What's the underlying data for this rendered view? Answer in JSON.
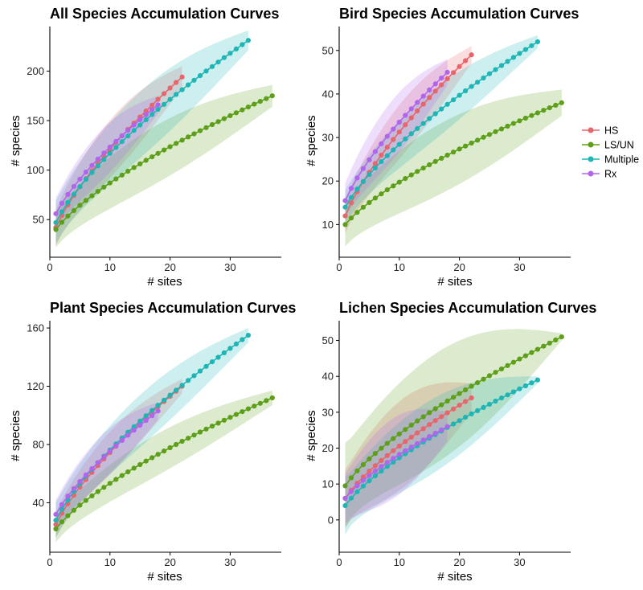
{
  "legend": {
    "entries": [
      {
        "label": "HS",
        "color": "#E7666B"
      },
      {
        "label": "LS/UN",
        "color": "#5E9F1A"
      },
      {
        "label": "Multiple",
        "color": "#1FB5B5"
      },
      {
        "label": "Rx",
        "color": "#B065EC"
      }
    ]
  },
  "chart_data": [
    {
      "type": "line",
      "title": "All Species Accumulation Curves",
      "xlabel": "# sites",
      "ylabel": "# species",
      "xlim": [
        0,
        38.5
      ],
      "ylim": [
        12,
        245
      ],
      "xticks": [
        0,
        10,
        20,
        30
      ],
      "yticks": [
        50,
        100,
        150,
        200
      ],
      "series": [
        {
          "name": "HS",
          "color": "#E7666B",
          "n": 22,
          "start": 42,
          "end": 194,
          "ci_start": 18,
          "ci_end": 11
        },
        {
          "name": "LS/UN",
          "color": "#5E9F1A",
          "n": 37,
          "start": 40,
          "end": 175,
          "ci_start": 18,
          "ci_end": 11
        },
        {
          "name": "Multiple",
          "color": "#1FB5B5",
          "n": 33,
          "start": 47,
          "end": 231,
          "ci_start": 22,
          "ci_end": 10
        },
        {
          "name": "Rx",
          "color": "#B065EC",
          "n": 18,
          "start": 56,
          "end": 166,
          "ci_start": 16,
          "ci_end": 9
        }
      ]
    },
    {
      "type": "line",
      "title": "Bird Species Accumulation Curves",
      "xlabel": "# sites",
      "ylabel": "# species",
      "xlim": [
        0,
        38.5
      ],
      "ylim": [
        2.5,
        55.5
      ],
      "xticks": [
        0,
        10,
        20,
        30
      ],
      "yticks": [
        10,
        20,
        30,
        40,
        50
      ],
      "series": [
        {
          "name": "HS",
          "color": "#E7666B",
          "n": 22,
          "start": 12,
          "end": 49,
          "ci_start": 4,
          "ci_end": 2
        },
        {
          "name": "LS/UN",
          "color": "#5E9F1A",
          "n": 37,
          "start": 10,
          "end": 38,
          "ci_start": 5,
          "ci_end": 3
        },
        {
          "name": "Multiple",
          "color": "#1FB5B5",
          "n": 33,
          "start": 14,
          "end": 52,
          "ci_start": 4,
          "ci_end": 1.5
        },
        {
          "name": "Rx",
          "color": "#B065EC",
          "n": 18,
          "start": 15.5,
          "end": 45,
          "ci_start": 4,
          "ci_end": 3
        }
      ]
    },
    {
      "type": "line",
      "title": "Plant Species Accumulation Curves",
      "xlabel": "# sites",
      "ylabel": "# species",
      "xlim": [
        0,
        38.5
      ],
      "ylim": [
        6,
        165
      ],
      "xticks": [
        0,
        10,
        20,
        30
      ],
      "yticks": [
        40,
        80,
        120,
        160
      ],
      "series": [
        {
          "name": "HS",
          "color": "#E7666B",
          "n": 22,
          "start": 25,
          "end": 120,
          "ci_start": 9,
          "ci_end": 5
        },
        {
          "name": "LS/UN",
          "color": "#5E9F1A",
          "n": 37,
          "start": 22,
          "end": 112,
          "ci_start": 9,
          "ci_end": 5
        },
        {
          "name": "Multiple",
          "color": "#1FB5B5",
          "n": 33,
          "start": 28,
          "end": 155,
          "ci_start": 12,
          "ci_end": 5
        },
        {
          "name": "Rx",
          "color": "#B065EC",
          "n": 18,
          "start": 32,
          "end": 103,
          "ci_start": 10,
          "ci_end": 6
        }
      ]
    },
    {
      "type": "line",
      "title": "Lichen Species Accumulation Curves",
      "xlabel": "# sites",
      "ylabel": "# species",
      "xlim": [
        0,
        38.5
      ],
      "ylim": [
        -9,
        55.5
      ],
      "xticks": [
        0,
        10,
        20,
        30
      ],
      "yticks": [
        0,
        10,
        20,
        30,
        40,
        50
      ],
      "series": [
        {
          "name": "HS",
          "color": "#E7666B",
          "n": 22,
          "start": 6,
          "end": 34,
          "ci_start": 8,
          "ci_end": 4
        },
        {
          "name": "LS/UN",
          "color": "#5E9F1A",
          "n": 37,
          "start": 9.5,
          "end": 51,
          "ci_start": 12,
          "ci_end": 1
        },
        {
          "name": "Multiple",
          "color": "#1FB5B5",
          "n": 33,
          "start": 4,
          "end": 39,
          "ci_start": 8,
          "ci_end": 1
        },
        {
          "name": "Rx",
          "color": "#B065EC",
          "n": 18,
          "start": 6,
          "end": 26,
          "ci_start": 7,
          "ci_end": 4
        }
      ]
    }
  ]
}
